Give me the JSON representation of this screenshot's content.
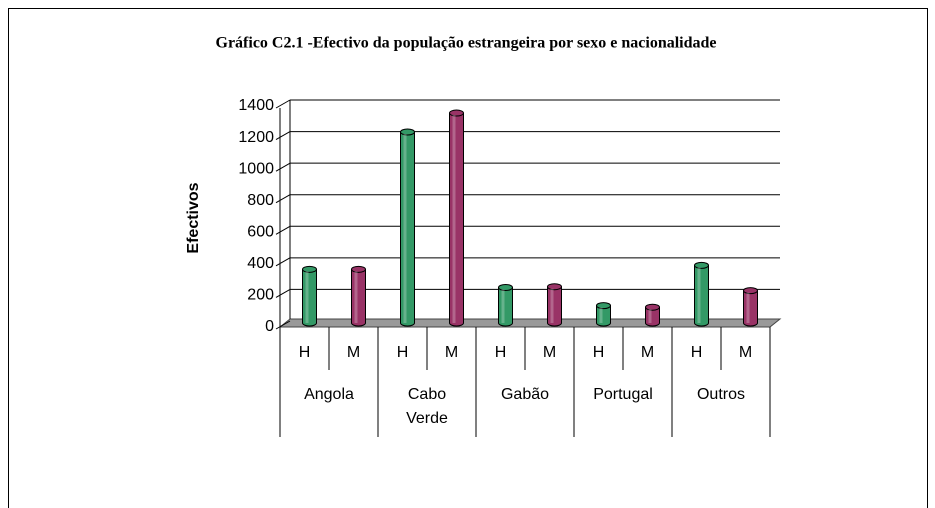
{
  "chart_data": {
    "type": "bar",
    "title": "Gráfico C2.1 -Efectivo da população estrangeira por sexo e nacionalidade",
    "y_label": "Efectivos",
    "categories": [
      "H",
      "M",
      "H",
      "M",
      "H",
      "M",
      "H",
      "M",
      "H",
      "M"
    ],
    "groups": [
      "Angola",
      "Cabo Verde",
      "Gabão",
      "Portugal",
      "Outros"
    ],
    "values": [
      340,
      340,
      1210,
      1330,
      225,
      230,
      110,
      100,
      365,
      205
    ],
    "colors": [
      "#339966",
      "#993366",
      "#339966",
      "#993366",
      "#339966",
      "#993366",
      "#339966",
      "#993366",
      "#339966",
      "#993366"
    ],
    "ylim": [
      0,
      1400
    ],
    "yticks": [
      0,
      200,
      400,
      600,
      800,
      1000,
      1200,
      1400
    ],
    "grid": true
  }
}
